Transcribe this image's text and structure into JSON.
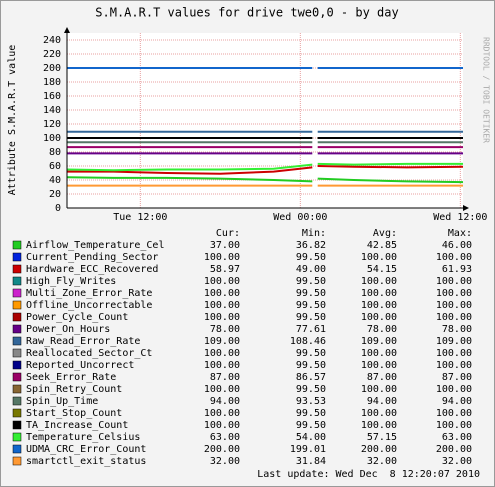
{
  "chart_data": {
    "type": "line",
    "title": "S.M.A.R.T values for drive twe0,0 - by day",
    "y_label": "Attribute S.M.A.R.T value",
    "watermark": "RRDTOOL / TOBI OETIKER",
    "x": [
      6.5,
      10,
      14,
      18,
      22,
      24.9,
      25.1,
      25.3,
      28,
      32,
      36.2
    ],
    "xlim": [
      6.5,
      36.2
    ],
    "xticks": [
      {
        "value": 12,
        "label": "Tue 12:00"
      },
      {
        "value": 24,
        "label": "Wed 00:00"
      },
      {
        "value": 36,
        "label": "Wed 12:00"
      }
    ],
    "ylim": [
      0,
      250
    ],
    "yticks": [
      0,
      20,
      40,
      60,
      80,
      100,
      120,
      140,
      160,
      180,
      200,
      220,
      240
    ],
    "grid": true,
    "legend_headers": [
      "Cur:",
      "Min:",
      "Avg:",
      "Max:"
    ],
    "last_update": "Last update: Wed Dec  8 12:20:07 2010",
    "series": [
      {
        "name": "Airflow_Temperature_Cel",
        "color": "#22cc22",
        "values": [
          44,
          43,
          43,
          42,
          40,
          38,
          null,
          42,
          40,
          38,
          37
        ],
        "stats": [
          "37.00",
          "36.82",
          "42.85",
          "46.00"
        ]
      },
      {
        "name": "Current_Pending_Sector",
        "color": "#0022dd",
        "values": [
          100,
          100,
          100,
          100,
          100,
          100,
          null,
          100,
          100,
          100,
          100
        ],
        "stats": [
          "100.00",
          "99.50",
          "100.00",
          "100.00"
        ]
      },
      {
        "name": "Hardware_ECC_Recovered",
        "color": "#cc0000",
        "values": [
          52,
          52,
          50,
          49,
          52,
          58,
          null,
          60,
          59,
          58,
          59
        ],
        "stats": [
          "58.97",
          "49.00",
          "54.15",
          "61.93"
        ]
      },
      {
        "name": "High_Fly_Writes",
        "color": "#118888",
        "values": [
          100,
          100,
          100,
          100,
          100,
          100,
          null,
          100,
          100,
          100,
          100
        ],
        "stats": [
          "100.00",
          "99.50",
          "100.00",
          "100.00"
        ]
      },
      {
        "name": "Multi_Zone_Error_Rate",
        "color": "#cc22cc",
        "values": [
          100,
          100,
          100,
          100,
          100,
          100,
          null,
          100,
          100,
          100,
          100
        ],
        "stats": [
          "100.00",
          "99.50",
          "100.00",
          "100.00"
        ]
      },
      {
        "name": "Offline_Uncorrectable",
        "color": "#ff9900",
        "values": [
          100,
          100,
          100,
          100,
          100,
          100,
          null,
          100,
          100,
          100,
          100
        ],
        "stats": [
          "100.00",
          "99.50",
          "100.00",
          "100.00"
        ]
      },
      {
        "name": "Power_Cycle_Count",
        "color": "#aa0000",
        "values": [
          100,
          100,
          100,
          100,
          100,
          100,
          null,
          100,
          100,
          100,
          100
        ],
        "stats": [
          "100.00",
          "99.50",
          "100.00",
          "100.00"
        ]
      },
      {
        "name": "Power_On_Hours",
        "color": "#660088",
        "values": [
          78,
          78,
          78,
          78,
          78,
          78,
          null,
          78,
          78,
          78,
          78
        ],
        "stats": [
          "78.00",
          "77.61",
          "78.00",
          "78.00"
        ]
      },
      {
        "name": "Raw_Read_Error_Rate",
        "color": "#336699",
        "values": [
          109,
          109,
          109,
          109,
          109,
          109,
          null,
          109,
          109,
          109,
          109
        ],
        "stats": [
          "109.00",
          "108.46",
          "109.00",
          "109.00"
        ]
      },
      {
        "name": "Reallocated_Sector_Ct",
        "color": "#888888",
        "values": [
          100,
          100,
          100,
          100,
          100,
          100,
          null,
          100,
          100,
          100,
          100
        ],
        "stats": [
          "100.00",
          "99.50",
          "100.00",
          "100.00"
        ]
      },
      {
        "name": "Reported_Uncorrect",
        "color": "#000088",
        "values": [
          100,
          100,
          100,
          100,
          100,
          100,
          null,
          100,
          100,
          100,
          100
        ],
        "stats": [
          "100.00",
          "99.50",
          "100.00",
          "100.00"
        ]
      },
      {
        "name": "Seek_Error_Rate",
        "color": "#990066",
        "values": [
          87,
          87,
          87,
          87,
          87,
          87,
          null,
          87,
          87,
          87,
          87
        ],
        "stats": [
          "87.00",
          "86.57",
          "87.00",
          "87.00"
        ]
      },
      {
        "name": "Spin_Retry_Count",
        "color": "#886633",
        "values": [
          100,
          100,
          100,
          100,
          100,
          100,
          null,
          100,
          100,
          100,
          100
        ],
        "stats": [
          "100.00",
          "99.50",
          "100.00",
          "100.00"
        ]
      },
      {
        "name": "Spin_Up_Time",
        "color": "#557766",
        "values": [
          94,
          94,
          94,
          94,
          94,
          94,
          null,
          94,
          94,
          94,
          94
        ],
        "stats": [
          "94.00",
          "93.53",
          "94.00",
          "94.00"
        ]
      },
      {
        "name": "Start_Stop_Count",
        "color": "#777700",
        "values": [
          100,
          100,
          100,
          100,
          100,
          100,
          null,
          100,
          100,
          100,
          100
        ],
        "stats": [
          "100.00",
          "99.50",
          "100.00",
          "100.00"
        ]
      },
      {
        "name": "TA_Increase_Count",
        "color": "#000000",
        "values": [
          100,
          100,
          100,
          100,
          100,
          100,
          null,
          100,
          100,
          100,
          100
        ],
        "stats": [
          "100.00",
          "99.50",
          "100.00",
          "100.00"
        ]
      },
      {
        "name": "Temperature_Celsius",
        "color": "#33ee33",
        "values": [
          55,
          54,
          55,
          55,
          56,
          62,
          null,
          63,
          62,
          63,
          63
        ],
        "stats": [
          "63.00",
          "54.00",
          "57.15",
          "63.00"
        ]
      },
      {
        "name": "UDMA_CRC_Error_Count",
        "color": "#1166cc",
        "values": [
          200,
          200,
          200,
          200,
          200,
          200,
          null,
          200,
          200,
          200,
          200
        ],
        "stats": [
          "200.00",
          "199.01",
          "200.00",
          "200.00"
        ]
      },
      {
        "name": "smartctl_exit_status",
        "color": "#ff9933",
        "values": [
          32,
          32,
          32,
          32,
          32,
          32,
          null,
          32,
          32,
          32,
          32
        ],
        "stats": [
          "32.00",
          "31.84",
          "32.00",
          "32.00"
        ]
      }
    ]
  }
}
